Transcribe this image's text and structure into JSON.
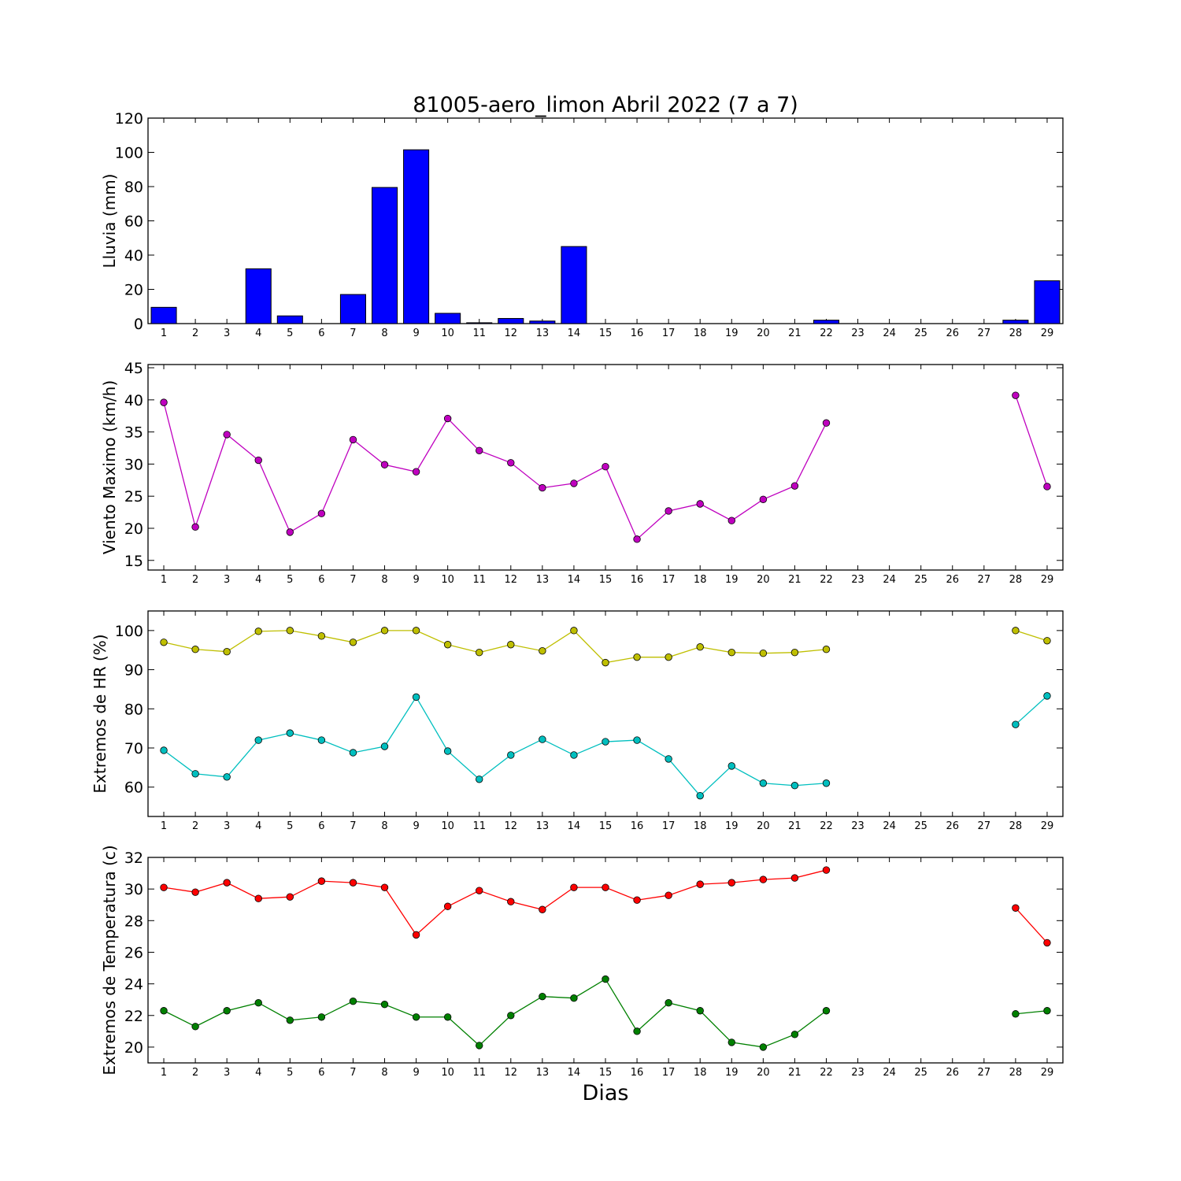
{
  "chart_data": {
    "title": "81005-aero_limon Abril 2022  (7 a 7)",
    "xlabel": "Dias",
    "days": [
      1,
      2,
      3,
      4,
      5,
      6,
      7,
      8,
      9,
      10,
      11,
      12,
      13,
      14,
      15,
      16,
      17,
      18,
      19,
      20,
      21,
      22,
      23,
      24,
      25,
      26,
      27,
      28,
      29
    ],
    "panels": [
      {
        "type": "bar",
        "ylabel": "Lluvia (mm)",
        "ylim": [
          0,
          120
        ],
        "yticks": [
          0,
          20,
          40,
          60,
          80,
          100,
          120
        ],
        "series": [
          {
            "color": "#0000ff",
            "values": [
              9.5,
              0,
              0,
              32,
              4.5,
              0,
              17,
              79.5,
              101.5,
              6,
              0.5,
              3,
              1.5,
              45,
              0,
              0,
              0,
              0,
              0,
              0,
              0,
              2,
              0,
              0,
              0,
              0,
              0,
              2,
              25
            ]
          }
        ]
      },
      {
        "type": "line",
        "ylabel": "Viento Maximo (km/h)",
        "ylim": [
          13.5,
          45.5
        ],
        "yticks": [
          15,
          20,
          25,
          30,
          35,
          40,
          45
        ],
        "series": [
          {
            "color": "#bf00bf",
            "values": [
              39.6,
              20.2,
              34.6,
              30.6,
              19.4,
              22.3,
              33.8,
              29.9,
              28.8,
              37.1,
              32.1,
              30.2,
              26.3,
              27.0,
              29.6,
              18.3,
              22.7,
              23.8,
              21.2,
              24.5,
              26.6,
              36.4,
              null,
              null,
              null,
              null,
              null,
              40.7,
              26.5
            ]
          }
        ]
      },
      {
        "type": "line",
        "ylabel": "Extremos de HR (%)",
        "ylim": [
          52.5,
          105
        ],
        "yticks": [
          60,
          70,
          80,
          90,
          100
        ],
        "series": [
          {
            "color": "#bfbf00",
            "values": [
              97,
              95.2,
              94.6,
              99.8,
              100,
              98.6,
              97,
              100,
              100,
              96.4,
              94.4,
              96.4,
              94.8,
              100,
              91.8,
              93.2,
              93.2,
              95.8,
              94.4,
              94.2,
              94.4,
              95.2,
              null,
              null,
              null,
              null,
              null,
              100,
              97.4
            ]
          },
          {
            "color": "#00bfbf",
            "values": [
              69.4,
              63.4,
              62.6,
              72,
              73.8,
              72,
              68.8,
              70.4,
              83,
              69.2,
              62,
              68.2,
              72.2,
              68.2,
              71.6,
              72,
              67.2,
              57.8,
              65.4,
              61,
              60.4,
              61,
              null,
              null,
              null,
              null,
              null,
              76,
              83.3
            ]
          }
        ]
      },
      {
        "type": "line",
        "ylabel": "Extremos de Temperatura (c)",
        "ylim": [
          19,
          32
        ],
        "yticks": [
          20,
          22,
          24,
          26,
          28,
          30,
          32
        ],
        "series": [
          {
            "color": "#ff0000",
            "values": [
              30.1,
              29.8,
              30.4,
              29.4,
              29.5,
              30.5,
              30.4,
              30.1,
              27.1,
              28.9,
              29.9,
              29.2,
              28.7,
              30.1,
              30.1,
              29.3,
              29.6,
              30.3,
              30.4,
              30.6,
              30.7,
              31.2,
              null,
              null,
              null,
              null,
              null,
              28.8,
              26.6
            ]
          },
          {
            "color": "#008000",
            "values": [
              22.3,
              21.3,
              22.3,
              22.8,
              21.7,
              21.9,
              22.9,
              22.7,
              21.9,
              21.9,
              20.1,
              22.0,
              23.2,
              23.1,
              24.3,
              21.0,
              22.8,
              22.3,
              20.3,
              20.0,
              20.8,
              22.3,
              null,
              null,
              null,
              null,
              null,
              22.1,
              22.3
            ]
          }
        ]
      }
    ]
  }
}
